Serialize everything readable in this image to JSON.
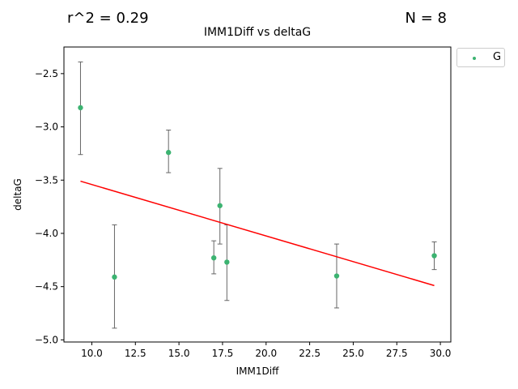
{
  "header": {
    "r2_text": "r^2 = 0.29",
    "n_text": "N = 8"
  },
  "legend": {
    "label": "G",
    "color": "#3cb371"
  },
  "chart_data": {
    "type": "scatter",
    "title": "IMM1Diff vs deltaG",
    "xlabel": "IMM1Diff",
    "ylabel": "deltaG",
    "xlim": [
      8.4,
      30.6
    ],
    "ylim": [
      -5.02,
      -2.25
    ],
    "xticks": [
      10.0,
      12.5,
      15.0,
      17.5,
      20.0,
      22.5,
      25.0,
      27.5,
      30.0
    ],
    "xtick_labels": [
      "10.0",
      "12.5",
      "15.0",
      "17.5",
      "20.0",
      "22.5",
      "25.0",
      "27.5",
      "30.0"
    ],
    "yticks": [
      -5.0,
      -4.5,
      -4.0,
      -3.5,
      -3.0,
      -2.5
    ],
    "ytick_labels": [
      "−5.0",
      "−4.5",
      "−4.0",
      "−3.5",
      "−3.0",
      "−2.5"
    ],
    "grid": false,
    "legend_position": "outside upper right",
    "series": [
      {
        "name": "G",
        "color": "#3cb371",
        "points": [
          {
            "x": 9.35,
            "y": -2.82,
            "err_low": -3.26,
            "err_high": -2.39
          },
          {
            "x": 11.3,
            "y": -4.41,
            "err_low": -4.89,
            "err_high": -3.92
          },
          {
            "x": 14.4,
            "y": -3.24,
            "err_low": -3.43,
            "err_high": -3.03
          },
          {
            "x": 17.0,
            "y": -4.23,
            "err_low": -4.38,
            "err_high": -4.07
          },
          {
            "x": 17.35,
            "y": -3.74,
            "err_low": -4.1,
            "err_high": -3.39
          },
          {
            "x": 17.75,
            "y": -4.27,
            "err_low": -4.63,
            "err_high": -3.92
          },
          {
            "x": 24.05,
            "y": -4.4,
            "err_low": -4.7,
            "err_high": -4.1
          },
          {
            "x": 29.65,
            "y": -4.21,
            "err_low": -4.34,
            "err_high": -4.08
          }
        ]
      }
    ],
    "fit_line": {
      "color": "#ff0000",
      "x": [
        9.35,
        29.65
      ],
      "y": [
        -3.51,
        -4.49
      ]
    },
    "errorbar_color": "#666666"
  }
}
